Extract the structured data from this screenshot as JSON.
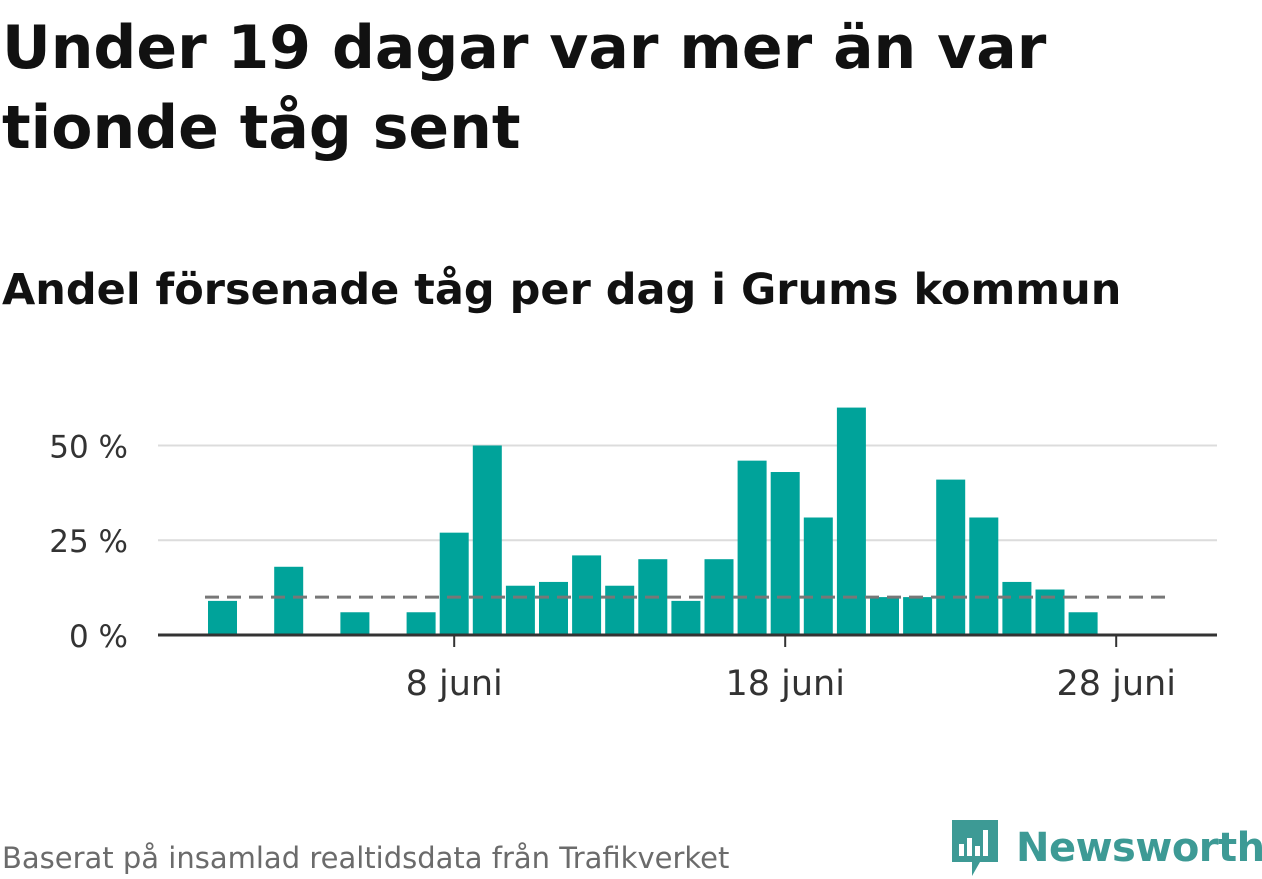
{
  "title": "Under 19 dagar var mer än var tionde tåg sent",
  "subtitle": "Andel försenade tåg per dag i Grums kommun",
  "source": "Baserat på insamlad realtidsdata från Trafikverket",
  "brand": {
    "name": "Newsworthy",
    "color": "#3d9a95",
    "icon": "newsworthy-logo-icon"
  },
  "chart_data": {
    "type": "bar",
    "x_type": "date",
    "x": [
      "2021-06-01",
      "2021-06-02",
      "2021-06-03",
      "2021-06-04",
      "2021-06-05",
      "2021-06-06",
      "2021-06-07",
      "2021-06-08",
      "2021-06-09",
      "2021-06-10",
      "2021-06-11",
      "2021-06-12",
      "2021-06-13",
      "2021-06-14",
      "2021-06-15",
      "2021-06-16",
      "2021-06-17",
      "2021-06-18",
      "2021-06-19",
      "2021-06-20",
      "2021-06-21",
      "2021-06-22",
      "2021-06-23",
      "2021-06-24",
      "2021-06-25",
      "2021-06-26",
      "2021-06-27",
      "2021-06-28",
      "2021-06-29",
      "2021-06-30"
    ],
    "values": [
      9,
      null,
      18,
      null,
      6,
      null,
      6,
      27,
      50,
      13,
      14,
      21,
      13,
      20,
      9,
      20,
      46,
      43,
      31,
      60,
      10,
      10,
      41,
      31,
      14,
      12,
      6,
      null,
      null,
      null
    ],
    "y_unit": "%",
    "ylim": [
      0,
      62
    ],
    "yticks": [
      0,
      25,
      50
    ],
    "ytick_labels": [
      "0 %",
      "25 %",
      "50 %"
    ],
    "xticks": [
      "2021-06-08",
      "2021-06-18",
      "2021-06-28"
    ],
    "xtick_labels": [
      "8 juni",
      "18 juni",
      "28 juni"
    ],
    "reference_line": {
      "value": 10,
      "style": "dashed",
      "color": "#777777"
    },
    "colors": {
      "bar": "#00a39a",
      "grid": "#dcdcdc",
      "axis": "#333333",
      "tick_text": "#333333"
    },
    "grid": true,
    "legend": "none"
  }
}
